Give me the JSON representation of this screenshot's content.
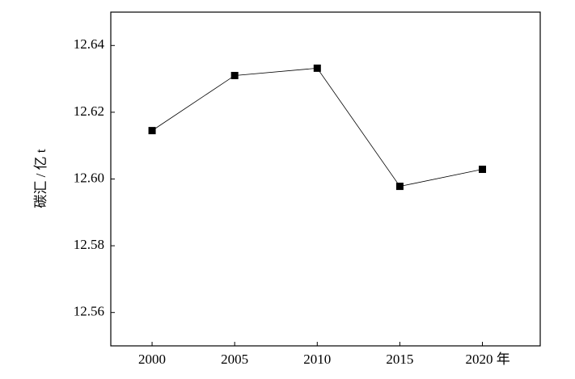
{
  "chart_data": {
    "type": "line",
    "ylabel": "碳汇 / 亿 t",
    "x": [
      2000,
      2005,
      2010,
      2015,
      2020
    ],
    "series": [
      {
        "color": "#000000",
        "values": [
          12.6145,
          12.631,
          12.6332,
          12.5978,
          12.6029
        ]
      }
    ],
    "xlim": [
      1997.5,
      2023.5
    ],
    "xticks": [
      2000,
      2005,
      2010,
      2015,
      {
        "value": 2020,
        "label": "2020 年"
      }
    ],
    "ylim": [
      12.55,
      12.65
    ],
    "yticks": [
      12.56,
      12.58,
      {
        "value": 12.6,
        "label": "12.60"
      },
      12.62,
      12.64
    ]
  }
}
